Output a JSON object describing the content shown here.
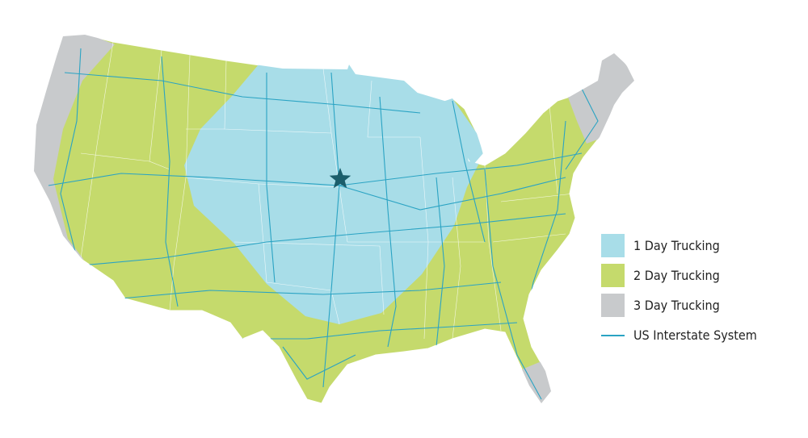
{
  "map": {
    "land_color": "#c5da6c",
    "border_color": "#ffffff",
    "origin_marker": {
      "icon": "star-icon",
      "color": "#1b5e6b"
    }
  },
  "legend": {
    "items": [
      {
        "label": "1 Day Trucking",
        "color": "#a8dde8",
        "type": "area"
      },
      {
        "label": "2 Day Trucking",
        "color": "#c5da6c",
        "type": "area"
      },
      {
        "label": "3 Day Trucking",
        "color": "#c8cacc",
        "type": "area"
      },
      {
        "label": "US Interstate System",
        "color": "#2aa3c3",
        "type": "line"
      }
    ]
  }
}
